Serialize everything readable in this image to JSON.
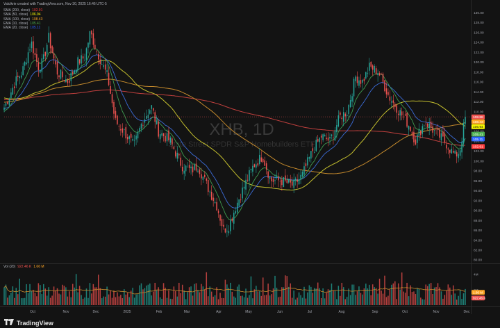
{
  "header": "Valcikrie created with TradingView.com, Nov 30, 2025 16:46 UTC-5",
  "watermark": {
    "symbol": "XHB, 1D",
    "name": "State Street SPDR S&P Homebuilders ETF"
  },
  "legend": [
    {
      "label": "SMA (200, close)",
      "value": "102.91",
      "color": "#ff3b3b"
    },
    {
      "label": "SMA (50, close)",
      "value": "106.94",
      "color": "#f7f700"
    },
    {
      "label": "SMA (100, close)",
      "value": "108.43",
      "color": "#ffa726"
    },
    {
      "label": "EMA (10, close)",
      "value": "105.41",
      "color": "#4caf50"
    },
    {
      "label": "EMA (20, close)",
      "value": "105.11",
      "color": "#2962ff"
    }
  ],
  "price_axis": {
    "ticks": [
      "80.00",
      "82.00",
      "84.00",
      "86.00",
      "88.00",
      "90.00",
      "92.00",
      "94.00",
      "96.00",
      "98.00",
      "100.00",
      "102.00",
      "104.00",
      "106.00",
      "108.00",
      "110.00",
      "112.00",
      "114.00",
      "116.00",
      "118.00",
      "120.00",
      "122.00",
      "124.00",
      "126.00",
      "128.00",
      "130.00"
    ],
    "labels": [
      {
        "text": "108.88",
        "value": 108.9,
        "bg": "#ef5350"
      },
      {
        "text": "108.43",
        "value": 108.4,
        "bg": "#ffa726"
      },
      {
        "text": "106.94",
        "value": 106.9,
        "bg": "#f7f700"
      },
      {
        "text": "105.41",
        "value": 105.4,
        "bg": "#4caf50"
      },
      {
        "text": "105.11",
        "value": 105.1,
        "bg": "#2962ff"
      },
      {
        "text": "102.91",
        "value": 102.9,
        "bg": "#ff3b3b"
      }
    ]
  },
  "volume": {
    "legend_label": "Vol (20)",
    "legend_values": [
      "922.46 K",
      "1.66 M"
    ],
    "ticks": [
      "4M",
      "2M"
    ],
    "labels": [
      "1.66 M",
      "922.46 K"
    ]
  },
  "time_axis": [
    "Oct",
    "Nov",
    "Dec",
    "2025",
    "Feb",
    "Mar",
    "Apr",
    "May",
    "Jun",
    "Jul",
    "Aug",
    "Sep",
    "Oct",
    "Nov",
    "Dec"
  ],
  "brand": "TradingView",
  "colors": {
    "up": "#26a69a",
    "down": "#ef5350",
    "background": "#131313"
  },
  "chart_data": {
    "type": "candlestick",
    "title": "XHB, 1D",
    "ylim": [
      80,
      131
    ],
    "key_points": [
      {
        "date": "2024-09-10",
        "price": 112
      },
      {
        "date": "2024-09-20",
        "price": 118
      },
      {
        "date": "2024-10-01",
        "price": 124
      },
      {
        "date": "2024-10-10",
        "price": 120
      },
      {
        "date": "2024-10-18",
        "price": 125
      },
      {
        "date": "2024-10-28",
        "price": 118
      },
      {
        "date": "2024-11-08",
        "price": 116
      },
      {
        "date": "2024-11-20",
        "price": 121
      },
      {
        "date": "2024-11-26",
        "price": 126
      },
      {
        "date": "2024-12-05",
        "price": 123
      },
      {
        "date": "2024-12-15",
        "price": 117
      },
      {
        "date": "2024-12-20",
        "price": 108
      },
      {
        "date": "2025-01-10",
        "price": 103
      },
      {
        "date": "2025-01-20",
        "price": 108
      },
      {
        "date": "2025-02-01",
        "price": 111
      },
      {
        "date": "2025-02-10",
        "price": 106
      },
      {
        "date": "2025-02-25",
        "price": 104
      },
      {
        "date": "2025-03-10",
        "price": 98
      },
      {
        "date": "2025-03-25",
        "price": 99
      },
      {
        "date": "2025-04-08",
        "price": 86
      },
      {
        "date": "2025-04-20",
        "price": 91
      },
      {
        "date": "2025-05-05",
        "price": 95
      },
      {
        "date": "2025-05-13",
        "price": 101
      },
      {
        "date": "2025-05-22",
        "price": 95
      },
      {
        "date": "2025-06-05",
        "price": 96
      },
      {
        "date": "2025-06-20",
        "price": 95
      },
      {
        "date": "2025-07-03",
        "price": 103
      },
      {
        "date": "2025-07-15",
        "price": 104
      },
      {
        "date": "2025-07-25",
        "price": 110
      },
      {
        "date": "2025-08-05",
        "price": 110
      },
      {
        "date": "2025-08-15",
        "price": 117
      },
      {
        "date": "2025-08-28",
        "price": 118
      },
      {
        "date": "2025-09-08",
        "price": 119
      },
      {
        "date": "2025-09-20",
        "price": 113
      },
      {
        "date": "2025-10-01",
        "price": 109
      },
      {
        "date": "2025-10-10",
        "price": 104
      },
      {
        "date": "2025-10-22",
        "price": 108
      },
      {
        "date": "2025-11-05",
        "price": 104
      },
      {
        "date": "2025-11-14",
        "price": 103
      },
      {
        "date": "2025-11-20",
        "price": 100
      },
      {
        "date": "2025-11-28",
        "price": 108.9
      }
    ]
  }
}
